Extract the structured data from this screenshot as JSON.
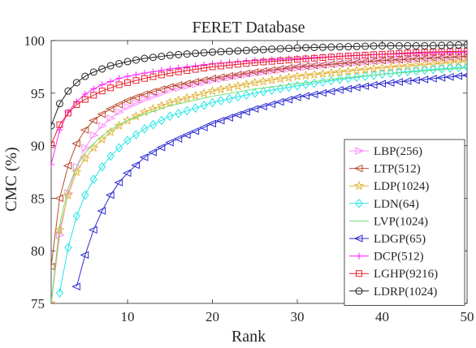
{
  "chart_data": {
    "type": "line",
    "title": "FERET Database",
    "xlabel": "Rank",
    "ylabel": "CMC (%)",
    "xlim": [
      1,
      50
    ],
    "ylim": [
      75,
      100
    ],
    "xticks": [
      10,
      20,
      30,
      40,
      50
    ],
    "yticks": [
      75,
      80,
      85,
      90,
      95,
      100
    ],
    "grid": false,
    "legend_position": "bottom-right",
    "series": [
      {
        "name": "LBP(256)",
        "color": "#ff88ff",
        "marker": "triangle-right",
        "points": [
          [
            1,
            75
          ],
          [
            2,
            81.5
          ],
          [
            3,
            85.5
          ],
          [
            4,
            88
          ],
          [
            5,
            89.8
          ],
          [
            6,
            91
          ],
          [
            7,
            91.9
          ],
          [
            8,
            92.6
          ],
          [
            9,
            93.2
          ],
          [
            10,
            93.7
          ],
          [
            12,
            94.4
          ],
          [
            15,
            95.3
          ],
          [
            20,
            96.2
          ],
          [
            25,
            96.9
          ],
          [
            30,
            97.4
          ],
          [
            35,
            97.8
          ],
          [
            40,
            98.1
          ],
          [
            45,
            98.3
          ],
          [
            50,
            98.5
          ]
        ]
      },
      {
        "name": "LTP(512)",
        "color": "#b94a2c",
        "marker": "triangle-left",
        "points": [
          [
            1,
            78.5
          ],
          [
            2,
            85
          ],
          [
            3,
            88.1
          ],
          [
            4,
            90.2
          ],
          [
            5,
            91.5
          ],
          [
            6,
            92.4
          ],
          [
            7,
            93
          ],
          [
            8,
            93.5
          ],
          [
            9,
            93.9
          ],
          [
            10,
            94.3
          ],
          [
            12,
            94.9
          ],
          [
            15,
            95.6
          ],
          [
            20,
            96.4
          ],
          [
            25,
            97
          ],
          [
            30,
            97.5
          ],
          [
            35,
            97.8
          ],
          [
            40,
            98.1
          ],
          [
            45,
            98.3
          ],
          [
            50,
            98.5
          ]
        ]
      },
      {
        "name": "LDP(1024)",
        "color": "#e0b43a",
        "marker": "star",
        "points": [
          [
            1,
            75
          ],
          [
            2,
            82
          ],
          [
            3,
            85.3
          ],
          [
            4,
            87.5
          ],
          [
            5,
            88.8
          ],
          [
            6,
            89.8
          ],
          [
            7,
            90.6
          ],
          [
            8,
            91.3
          ],
          [
            9,
            91.9
          ],
          [
            10,
            92.4
          ],
          [
            12,
            93.2
          ],
          [
            15,
            94.1
          ],
          [
            20,
            95.2
          ],
          [
            25,
            96
          ],
          [
            30,
            96.6
          ],
          [
            35,
            97
          ],
          [
            40,
            97.4
          ],
          [
            45,
            97.7
          ],
          [
            50,
            98
          ]
        ]
      },
      {
        "name": "LDN(64)",
        "color": "#22e6e6",
        "marker": "diamond",
        "points": [
          [
            2,
            76
          ],
          [
            3,
            80.3
          ],
          [
            4,
            83.3
          ],
          [
            5,
            85.3
          ],
          [
            6,
            86.8
          ],
          [
            7,
            88
          ],
          [
            8,
            89
          ],
          [
            9,
            89.8
          ],
          [
            10,
            90.5
          ],
          [
            12,
            91.6
          ],
          [
            15,
            92.8
          ],
          [
            20,
            94.1
          ],
          [
            25,
            95
          ],
          [
            30,
            95.7
          ],
          [
            35,
            96.3
          ],
          [
            40,
            96.8
          ],
          [
            45,
            97.2
          ],
          [
            50,
            97.5
          ]
        ]
      },
      {
        "name": "LVP(1024)",
        "color": "#6ee06e",
        "marker": "none",
        "points": [
          [
            1,
            75
          ],
          [
            2,
            82.5
          ],
          [
            3,
            86
          ],
          [
            4,
            88
          ],
          [
            5,
            89.3
          ],
          [
            6,
            90.2
          ],
          [
            7,
            90.9
          ],
          [
            8,
            91.5
          ],
          [
            9,
            92
          ],
          [
            10,
            92.4
          ],
          [
            12,
            93
          ],
          [
            15,
            93.8
          ],
          [
            20,
            94.7
          ],
          [
            25,
            95.4
          ],
          [
            30,
            95.9
          ],
          [
            35,
            96.4
          ],
          [
            40,
            96.8
          ],
          [
            45,
            97.1
          ],
          [
            50,
            97.4
          ]
        ]
      },
      {
        "name": "LDGP(65)",
        "color": "#2a2ad0",
        "marker": "triangle-left",
        "points": [
          [
            4,
            76.6
          ],
          [
            5,
            79.6
          ],
          [
            6,
            82
          ],
          [
            7,
            83.8
          ],
          [
            8,
            85.3
          ],
          [
            9,
            86.5
          ],
          [
            10,
            87.4
          ],
          [
            12,
            88.9
          ],
          [
            15,
            90.3
          ],
          [
            20,
            92.1
          ],
          [
            25,
            93.5
          ],
          [
            30,
            94.6
          ],
          [
            35,
            95.3
          ],
          [
            40,
            95.9
          ],
          [
            45,
            96.3
          ],
          [
            50,
            96.7
          ]
        ]
      },
      {
        "name": "DCP(512)",
        "color": "#ff22ff",
        "marker": "plus",
        "points": [
          [
            1,
            88.2
          ],
          [
            2,
            91.5
          ],
          [
            3,
            93.2
          ],
          [
            4,
            94.2
          ],
          [
            5,
            94.9
          ],
          [
            6,
            95.4
          ],
          [
            7,
            95.8
          ],
          [
            8,
            96.1
          ],
          [
            9,
            96.4
          ],
          [
            10,
            96.6
          ],
          [
            12,
            96.9
          ],
          [
            15,
            97.3
          ],
          [
            20,
            97.8
          ],
          [
            25,
            98.1
          ],
          [
            30,
            98.3
          ],
          [
            35,
            98.5
          ],
          [
            40,
            98.7
          ],
          [
            45,
            98.8
          ],
          [
            50,
            98.9
          ]
        ]
      },
      {
        "name": "LGHP(9216)",
        "color": "#e8202c",
        "marker": "square",
        "points": [
          [
            1,
            90.1
          ],
          [
            2,
            92
          ],
          [
            3,
            93.1
          ],
          [
            4,
            93.9
          ],
          [
            5,
            94.4
          ],
          [
            6,
            94.8
          ],
          [
            7,
            95.2
          ],
          [
            8,
            95.5
          ],
          [
            9,
            95.8
          ],
          [
            10,
            96
          ],
          [
            12,
            96.4
          ],
          [
            15,
            96.9
          ],
          [
            20,
            97.5
          ],
          [
            25,
            97.9
          ],
          [
            30,
            98.2
          ],
          [
            35,
            98.5
          ],
          [
            40,
            98.7
          ],
          [
            45,
            98.9
          ],
          [
            50,
            99
          ]
        ]
      },
      {
        "name": "LDRP(1024)",
        "color": "#222222",
        "marker": "circle",
        "points": [
          [
            1,
            91.9
          ],
          [
            2,
            94
          ],
          [
            3,
            95.2
          ],
          [
            4,
            96
          ],
          [
            5,
            96.6
          ],
          [
            6,
            97
          ],
          [
            7,
            97.3
          ],
          [
            8,
            97.6
          ],
          [
            9,
            97.8
          ],
          [
            10,
            98
          ],
          [
            12,
            98.3
          ],
          [
            15,
            98.6
          ],
          [
            20,
            98.9
          ],
          [
            25,
            99.1
          ],
          [
            30,
            99.3
          ],
          [
            35,
            99.4
          ],
          [
            40,
            99.5
          ],
          [
            45,
            99.5
          ],
          [
            50,
            99.6
          ]
        ]
      }
    ]
  }
}
